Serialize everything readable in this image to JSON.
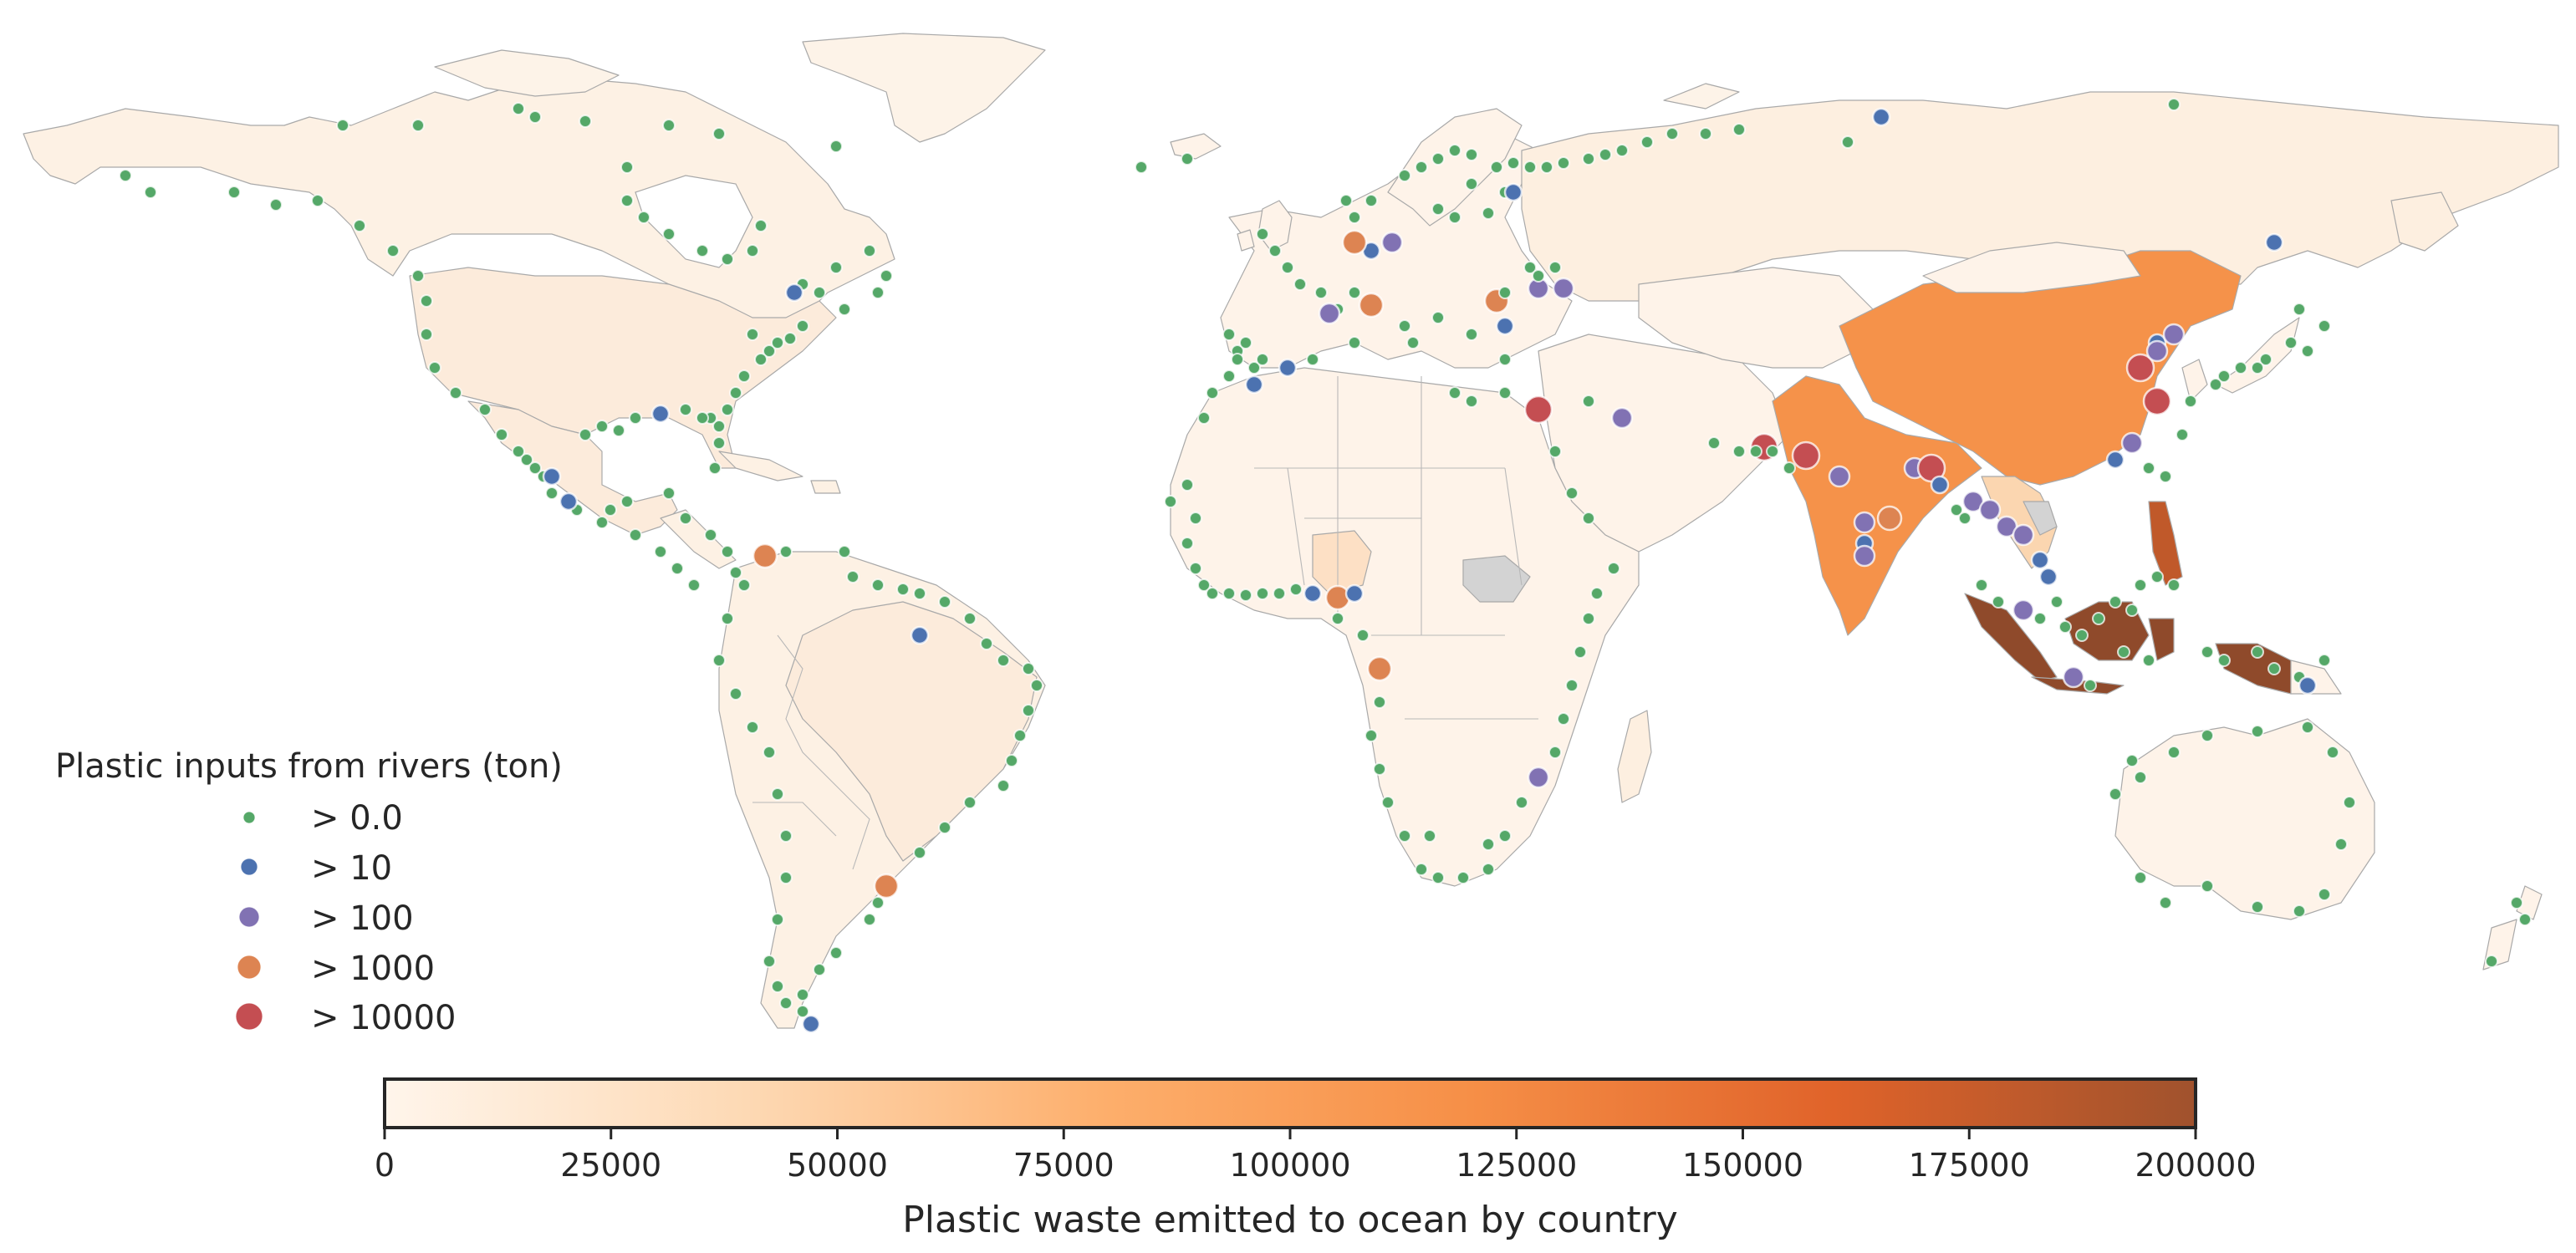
{
  "legend": {
    "title": "Plastic inputs from rivers (ton)",
    "items": [
      {
        "label": "> 0.0",
        "color": "#55a868",
        "size": "small"
      },
      {
        "label": "> 10",
        "color": "#4c72b0",
        "size": "medium-small"
      },
      {
        "label": "> 100",
        "color": "#8172b3",
        "size": "medium"
      },
      {
        "label": "> 1000",
        "color": "#dd8452",
        "size": "large"
      },
      {
        "label": "> 10000",
        "color": "#c44e52",
        "size": "largest"
      }
    ]
  },
  "colorbar": {
    "label": "Plastic waste emitted to ocean by country",
    "min": 0,
    "max": 200000,
    "ticks": [
      "0",
      "25000",
      "50000",
      "75000",
      "100000",
      "125000",
      "150000",
      "175000",
      "200000"
    ],
    "colormap": [
      "#fff5eb",
      "#fdd9b4",
      "#fdad6c",
      "#f58d45",
      "#e16224",
      "#a0522d"
    ]
  },
  "map": {
    "no_data_color": "#d3d3d3",
    "border_color": "#a9a9a9"
  }
}
